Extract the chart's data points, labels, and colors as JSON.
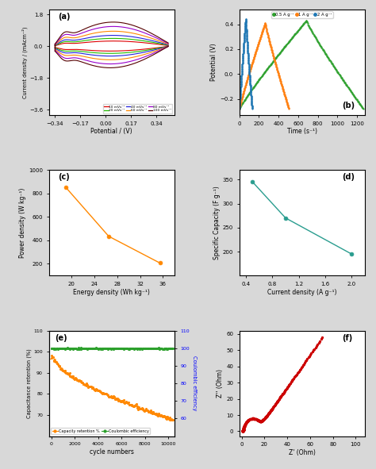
{
  "panel_a": {
    "title": "(a)",
    "xlabel": "Potential / (V)",
    "ylabel": "Current density / (mAcm⁻²)",
    "xlim": [
      -0.38,
      0.46
    ],
    "ylim": [
      -3.9,
      2.1
    ],
    "xticks": [
      -0.34,
      -0.17,
      0.0,
      0.17,
      0.34
    ],
    "yticks": [
      -3.6,
      -1.8,
      0.0,
      1.8
    ],
    "colors": [
      "#dd0000",
      "#22bb00",
      "#2222dd",
      "#ff8800",
      "#9900cc",
      "#550000"
    ],
    "scales": [
      0.28,
      0.42,
      0.58,
      0.8,
      1.05,
      1.28
    ]
  },
  "panel_b": {
    "title": "(b)",
    "xlabel": "Time (s⁻¹)",
    "ylabel": "Potential (V)",
    "xlim": [
      0,
      1280
    ],
    "ylim": [
      -0.33,
      0.52
    ],
    "xticks": [
      0,
      200,
      400,
      600,
      800,
      1000,
      1200
    ],
    "yticks": [
      -0.2,
      0.0,
      0.2,
      0.4
    ],
    "colors": [
      "#2ca02c",
      "#ff7f0e",
      "#1f77b4"
    ]
  },
  "panel_c": {
    "title": "(c)",
    "xlabel": "Energy density (Wh kg⁻¹)",
    "ylabel": "Power density (W kg⁻¹)",
    "xlim": [
      16,
      38
    ],
    "ylim": [
      100,
      1000
    ],
    "xticks": [
      20,
      24,
      28,
      32,
      36
    ],
    "yticks": [
      200,
      400,
      600,
      800,
      1000
    ],
    "x_data": [
      19.0,
      26.5,
      35.5
    ],
    "y_data": [
      850,
      435,
      207
    ],
    "color": "#ff8800"
  },
  "panel_d": {
    "title": "(d)",
    "xlabel": "Current density (A g⁻¹)",
    "ylabel": "Specific Capacity (F g⁻¹)",
    "xlim": [
      0.3,
      2.2
    ],
    "ylim": [
      150,
      370
    ],
    "xticks": [
      0.4,
      0.8,
      1.2,
      1.6,
      2.0
    ],
    "yticks": [
      200,
      250,
      300,
      350
    ],
    "x_data": [
      0.5,
      1.0,
      2.0
    ],
    "y_data": [
      345,
      270,
      195
    ],
    "color": "#2a9d8f"
  },
  "panel_e": {
    "title": "(e)",
    "xlabel": "cycle numbers",
    "ylabel_left": "Capacitance retention (%)",
    "ylabel_right": "Coulombic efficiency",
    "xlim": [
      -200,
      10500
    ],
    "ylim_left": [
      60,
      110
    ],
    "ylim_right": [
      50,
      110
    ],
    "xticks": [
      0,
      2000,
      4000,
      6000,
      8000,
      10000
    ],
    "yticks_left": [
      70,
      80,
      90,
      100,
      110
    ],
    "yticks_right": [
      60,
      70,
      80,
      90,
      100,
      110
    ],
    "color_retention": "#ff8800",
    "color_coulombic": "#2ca02c",
    "legend": [
      "Capacity retention %",
      "Coulombic efficiency"
    ]
  },
  "panel_f": {
    "title": "(f)",
    "xlabel": "Z' (Ohm)",
    "ylabel": "Z'' (Ohm)",
    "xlim": [
      -2,
      108
    ],
    "ylim": [
      -3,
      62
    ],
    "xticks": [
      0,
      20,
      40,
      60,
      80,
      100
    ],
    "yticks": [
      0,
      10,
      20,
      30,
      40,
      50,
      60
    ],
    "color": "#cc0000"
  },
  "background_color": "#ffffff",
  "figure_background": "#d8d8d8"
}
